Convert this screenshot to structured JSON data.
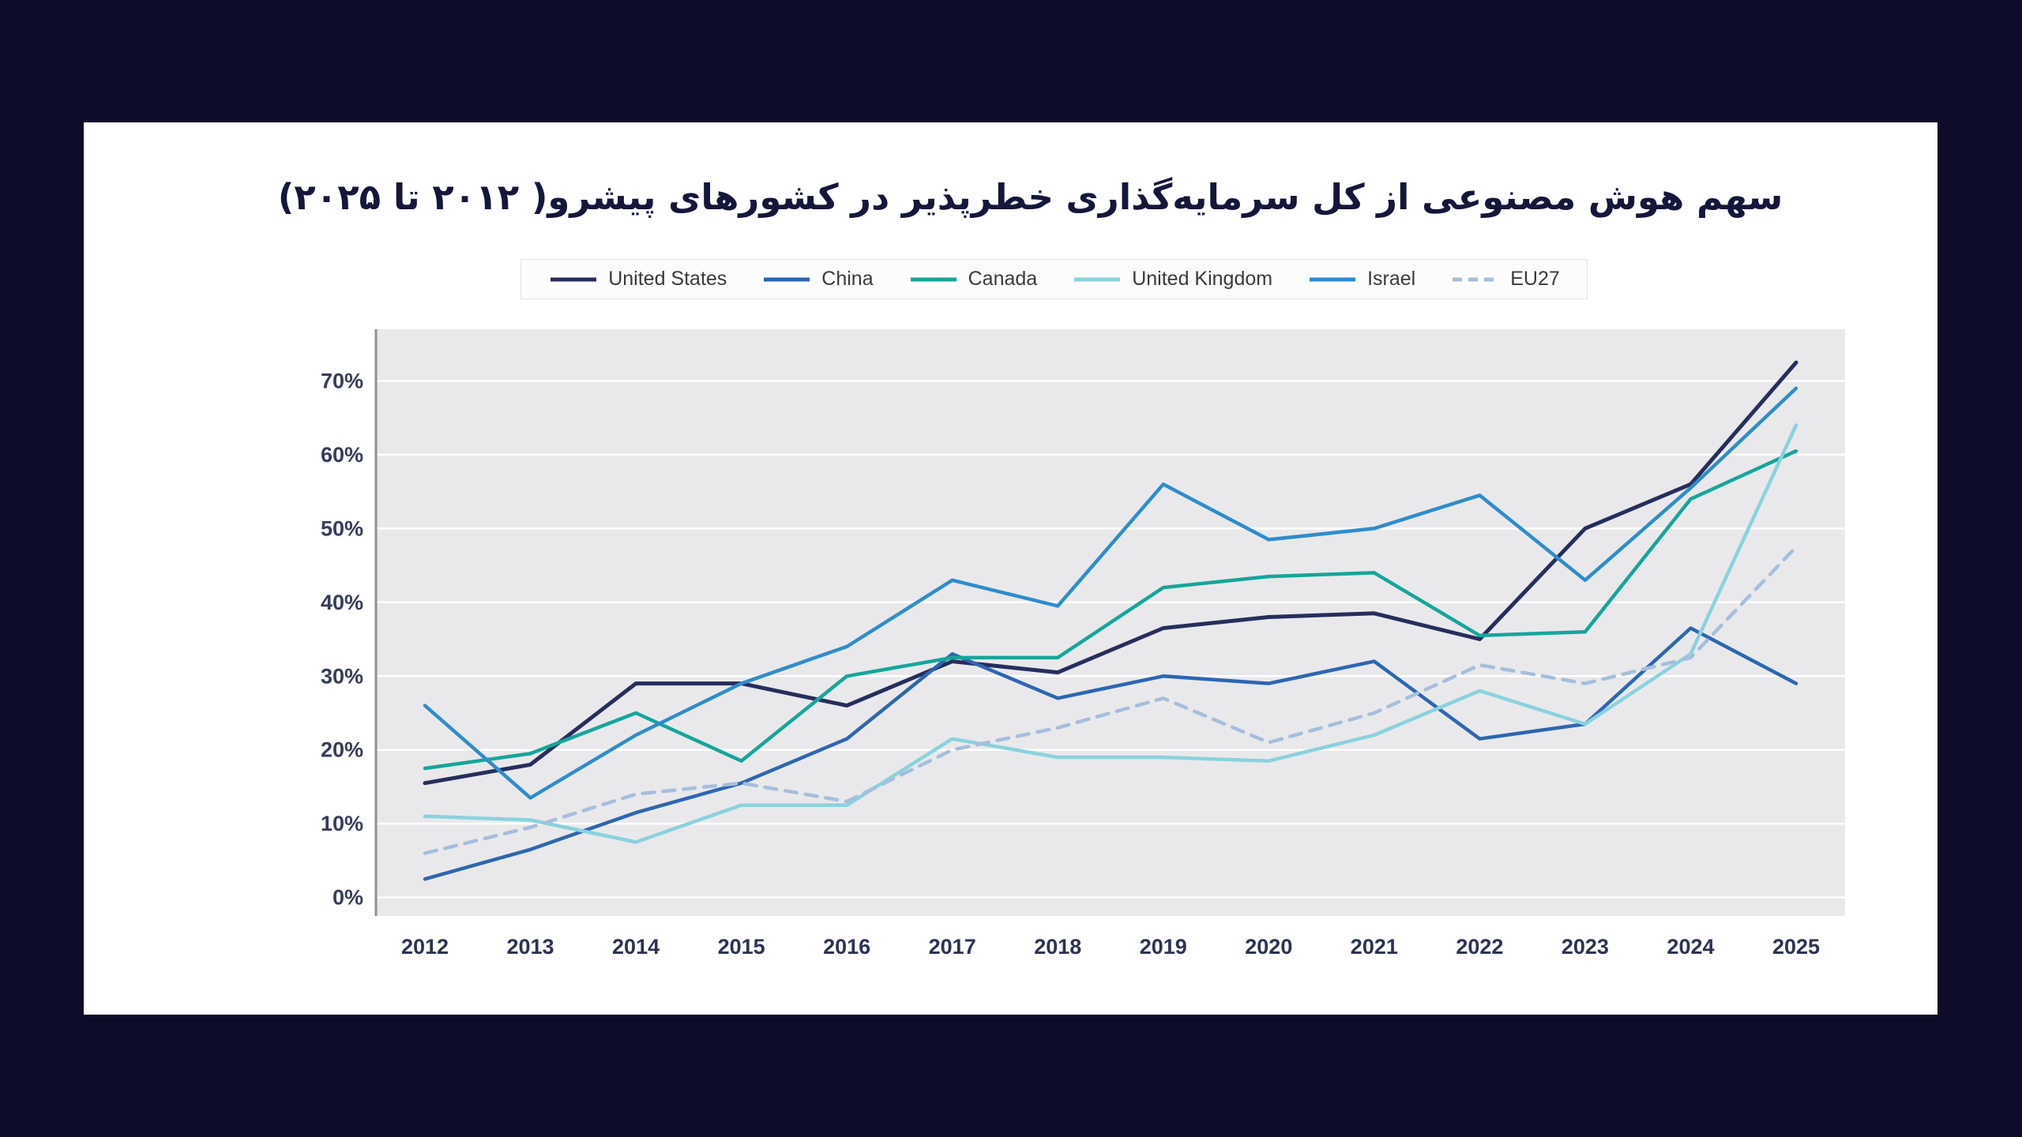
{
  "page": {
    "background_color": "#0d0d2a",
    "card_color": "#ffffff"
  },
  "chart": {
    "title": "سهم هوش مصنوعی از کل سرمایه‌گذاری خطرپذیر در کشورهای پیشرو( ۲۰۱۲ تا ۲۰۲۵)"
  },
  "chart_data": {
    "type": "line",
    "title": "سهم هوش مصنوعی از کل سرمایه‌گذاری خطرپذیر در کشورهای پیشرو( ۲۰۱۲ تا ۲۰۲۵)",
    "x": [
      "2012",
      "2013",
      "2014",
      "2015",
      "2016",
      "2017",
      "2018",
      "2019",
      "2020",
      "2021",
      "2022",
      "2023",
      "2024",
      "2025"
    ],
    "y_ticks": [
      "0%",
      "10%",
      "20%",
      "30%",
      "40%",
      "50%",
      "60%",
      "70%"
    ],
    "ylim": [
      0,
      75
    ],
    "grid": true,
    "grid_color": "#ffffff",
    "plot_background": "#e9e9eb",
    "legend_position": "top",
    "series": [
      {
        "name": "United States",
        "color": "#262e5d",
        "dash": "solid",
        "values": [
          15.5,
          18,
          29,
          29,
          26,
          32,
          30.5,
          36.5,
          38,
          38.5,
          35,
          50,
          56,
          72.5
        ]
      },
      {
        "name": "China",
        "color": "#2d66b2",
        "dash": "solid",
        "values": [
          2.5,
          6.5,
          11.5,
          15.5,
          21.5,
          33,
          27,
          30,
          29,
          32,
          21.5,
          23.5,
          36.5,
          29
        ]
      },
      {
        "name": "Canada",
        "color": "#16a59b",
        "dash": "solid",
        "values": [
          17.5,
          19.5,
          25,
          18.5,
          30,
          32.5,
          32.5,
          42,
          43.5,
          44,
          35.5,
          36,
          54,
          60.5
        ]
      },
      {
        "name": "United Kingdom",
        "color": "#8ad2de",
        "dash": "solid",
        "values": [
          11,
          10.5,
          7.5,
          12.5,
          12.5,
          21.5,
          19,
          19,
          18.5,
          22,
          28,
          23.5,
          33,
          64
        ]
      },
      {
        "name": "Israel",
        "color": "#2f8ccd",
        "dash": "solid",
        "values": [
          26,
          13.5,
          22,
          29,
          34,
          43,
          39.5,
          56,
          48.5,
          50,
          54.5,
          43,
          55.5,
          69
        ]
      },
      {
        "name": "EU27",
        "color": "#a6bedd",
        "dash": "dash",
        "values": [
          6,
          9.5,
          14,
          15.5,
          13,
          20,
          23,
          27,
          21,
          25,
          31.5,
          29,
          32.5,
          47.5
        ]
      }
    ]
  }
}
